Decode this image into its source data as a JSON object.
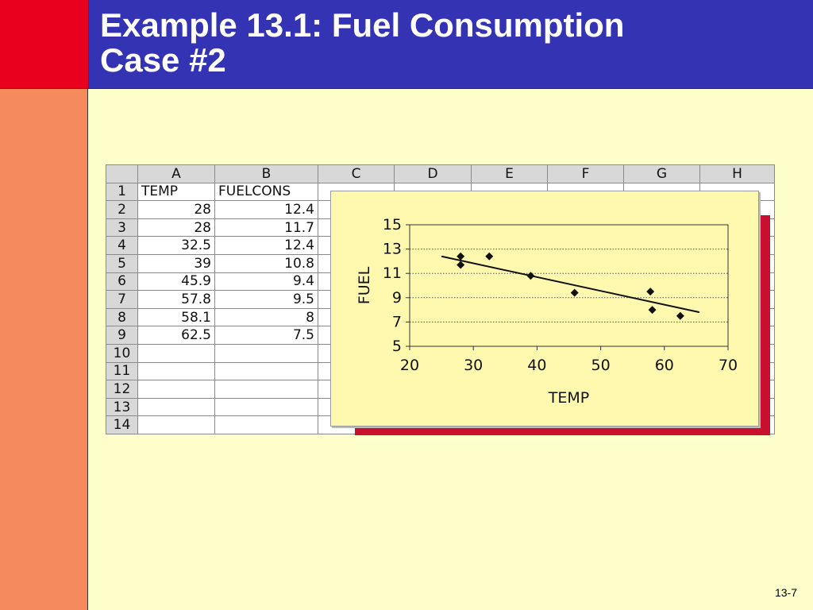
{
  "slide": {
    "title_line1": "Example 13.1: Fuel Consumption",
    "title_line2": "Case #2",
    "page_number": "13-7"
  },
  "colors": {
    "background": "#ffffcc",
    "title_bar": "#3333b3",
    "left_bar": "#f58a5c",
    "corner": "#e8001e",
    "chart_bg": "#fff9b0",
    "chart_shadow": "#c8102e"
  },
  "sheet": {
    "columns": [
      "A",
      "B",
      "C",
      "D",
      "E",
      "F",
      "G",
      "H"
    ],
    "rows": [
      {
        "n": "1",
        "a": "TEMP",
        "b": "FUELCONS"
      },
      {
        "n": "2",
        "a": "28",
        "b": "12.4"
      },
      {
        "n": "3",
        "a": "28",
        "b": "11.7"
      },
      {
        "n": "4",
        "a": "32.5",
        "b": "12.4"
      },
      {
        "n": "5",
        "a": "39",
        "b": "10.8"
      },
      {
        "n": "6",
        "a": "45.9",
        "b": "9.4"
      },
      {
        "n": "7",
        "a": "57.8",
        "b": "9.5"
      },
      {
        "n": "8",
        "a": "58.1",
        "b": "8"
      },
      {
        "n": "9",
        "a": "62.5",
        "b": "7.5"
      },
      {
        "n": "10",
        "a": "",
        "b": ""
      },
      {
        "n": "11",
        "a": "",
        "b": ""
      },
      {
        "n": "12",
        "a": "",
        "b": ""
      },
      {
        "n": "13",
        "a": "",
        "b": ""
      },
      {
        "n": "14",
        "a": "",
        "b": ""
      }
    ]
  },
  "chart_data": {
    "type": "scatter",
    "xlabel": "TEMP",
    "ylabel": "FUEL",
    "xlim": [
      20,
      70
    ],
    "ylim": [
      5,
      15
    ],
    "xticks": [
      20,
      30,
      40,
      50,
      60,
      70
    ],
    "yticks": [
      5,
      7,
      9,
      11,
      13,
      15
    ],
    "grid": "horizontal dotted",
    "points": [
      {
        "x": 28,
        "y": 12.4
      },
      {
        "x": 28,
        "y": 11.7
      },
      {
        "x": 32.5,
        "y": 12.4
      },
      {
        "x": 39,
        "y": 10.8
      },
      {
        "x": 45.9,
        "y": 9.4
      },
      {
        "x": 57.8,
        "y": 9.5
      },
      {
        "x": 58.1,
        "y": 8
      },
      {
        "x": 62.5,
        "y": 7.5
      }
    ],
    "trendline": {
      "x": [
        25,
        65.5
      ],
      "y": [
        12.4,
        7.8
      ]
    }
  }
}
